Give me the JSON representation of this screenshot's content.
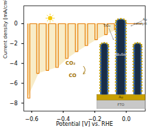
{
  "chart_data": {
    "type": "line",
    "xlabel": "Potential [V] vs. RHE",
    "ylabel": "Current density [mA/cm²]",
    "xlim": [
      -0.65,
      0.12
    ],
    "ylim": [
      -8.8,
      1.8
    ],
    "xticks": [
      {
        "value": -0.6,
        "label": "−0.6"
      },
      {
        "value": -0.4,
        "label": "−0.4"
      },
      {
        "value": -0.2,
        "label": "−0.2"
      },
      {
        "value": 0.0,
        "label": "0.0"
      }
    ],
    "yticks": [
      0,
      {
        "value": -2,
        "label": "−2"
      },
      {
        "value": -4,
        "label": "−4"
      },
      {
        "value": -6,
        "label": "−6"
      },
      {
        "value": -8,
        "label": "−8"
      }
    ],
    "grid": false,
    "annotations": [
      "CO₂",
      "CO",
      "FTO",
      "Au",
      "Sb₂Se₃",
      "TiO₂",
      "Au\ncatalyst"
    ],
    "series": [
      {
        "type": "area",
        "color": "#F5E4B0",
        "x": [
          -0.625,
          -0.554,
          -0.493,
          -0.432,
          -0.37,
          -0.308,
          -0.246,
          -0.184,
          -0.122,
          -0.06,
          0.0,
          0.1
        ],
        "values": [
          -7.5,
          -5.0,
          -4.7,
          -4.4,
          -3.5,
          -2.8,
          -2.2,
          -1.6,
          -1.1,
          -0.6,
          0.0,
          0.0
        ]
      },
      {
        "type": "line",
        "color": "#E8820C",
        "x": [
          -0.625,
          -0.625,
          -0.625,
          -0.612,
          -0.612,
          -0.6,
          -0.6,
          -0.568,
          -0.568,
          -0.568,
          -0.55344,
          -0.55344,
          -0.54,
          -0.54,
          -0.508,
          -0.508,
          -0.508,
          -0.4924,
          -0.4924,
          -0.478,
          -0.478,
          -0.447,
          -0.447,
          -0.447,
          -0.4314,
          -0.4314,
          -0.417,
          -0.417,
          -0.385,
          -0.385,
          -0.385,
          -0.3694,
          -0.3694,
          -0.355,
          -0.355,
          -0.323,
          -0.323,
          -0.323,
          -0.3074,
          -0.3074,
          -0.293,
          -0.293,
          -0.261,
          -0.261,
          -0.261,
          -0.2454,
          -0.2454,
          -0.231,
          -0.231,
          -0.199,
          -0.199,
          -0.199,
          -0.1834,
          -0.1834,
          -0.169,
          -0.169,
          -0.137,
          -0.137,
          -0.137,
          -0.1214,
          -0.1214,
          -0.107,
          -0.107,
          -0.075,
          -0.075,
          -0.075,
          -0.0594,
          -0.0594,
          -0.045,
          -0.045,
          0.1
        ],
        "values": [
          0.0,
          0.0,
          -7.5,
          -7.5,
          0.0,
          0.0,
          0.0,
          0.0,
          0.0,
          -5.0,
          -5.0,
          0.0,
          0.0,
          0.0,
          0.0,
          0.0,
          -4.7,
          -4.7,
          0.0,
          0.0,
          0.0,
          0.0,
          0.0,
          -4.4,
          -4.4,
          0.0,
          0.0,
          0.0,
          0.0,
          0.0,
          -3.5,
          -3.5,
          0.0,
          0.0,
          0.0,
          0.0,
          0.0,
          -2.8,
          -2.8,
          0.0,
          0.0,
          0.0,
          0.0,
          0.0,
          -2.2,
          -2.2,
          0.0,
          0.0,
          0.0,
          0.0,
          0.0,
          -1.6,
          -1.6,
          0.0,
          0.0,
          0.0,
          0.0,
          0.0,
          -1.1,
          -1.1,
          0.0,
          0.0,
          0.0,
          0.0,
          0.0,
          -0.6,
          -0.6,
          0.0,
          0.0,
          0.0,
          0.0
        ]
      }
    ]
  }
}
